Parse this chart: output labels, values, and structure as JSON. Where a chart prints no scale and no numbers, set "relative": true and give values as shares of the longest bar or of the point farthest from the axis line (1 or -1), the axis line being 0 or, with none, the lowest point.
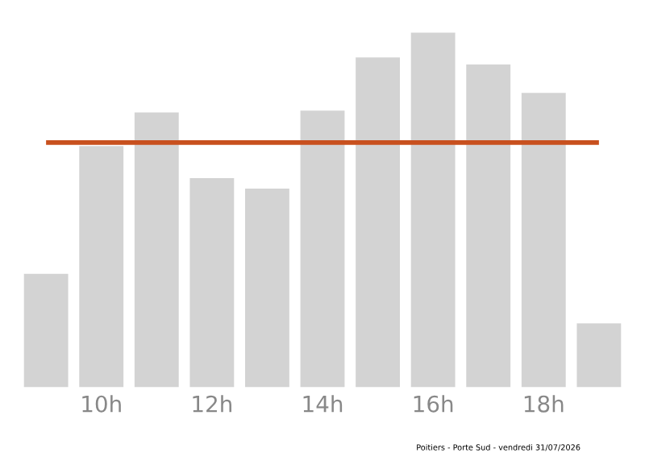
{
  "chart_data": {
    "type": "bar",
    "relative": true,
    "categories": [
      null,
      "10h",
      null,
      "12h",
      null,
      "14h",
      null,
      "16h",
      null,
      "18h",
      null
    ],
    "values": [
      0.32,
      0.68,
      0.775,
      0.59,
      0.56,
      0.78,
      0.93,
      1,
      0.91,
      0.83,
      0.18
    ],
    "color": "#d3d3d3",
    "tick_labels": "x",
    "grid": false,
    "ref_lines": [
      {
        "axis": "y",
        "value": 0.69,
        "color": "#c8501e"
      }
    ],
    "annotations": [
      "Poitiers - Porte Sud - vendredi 31/07/2026"
    ]
  }
}
